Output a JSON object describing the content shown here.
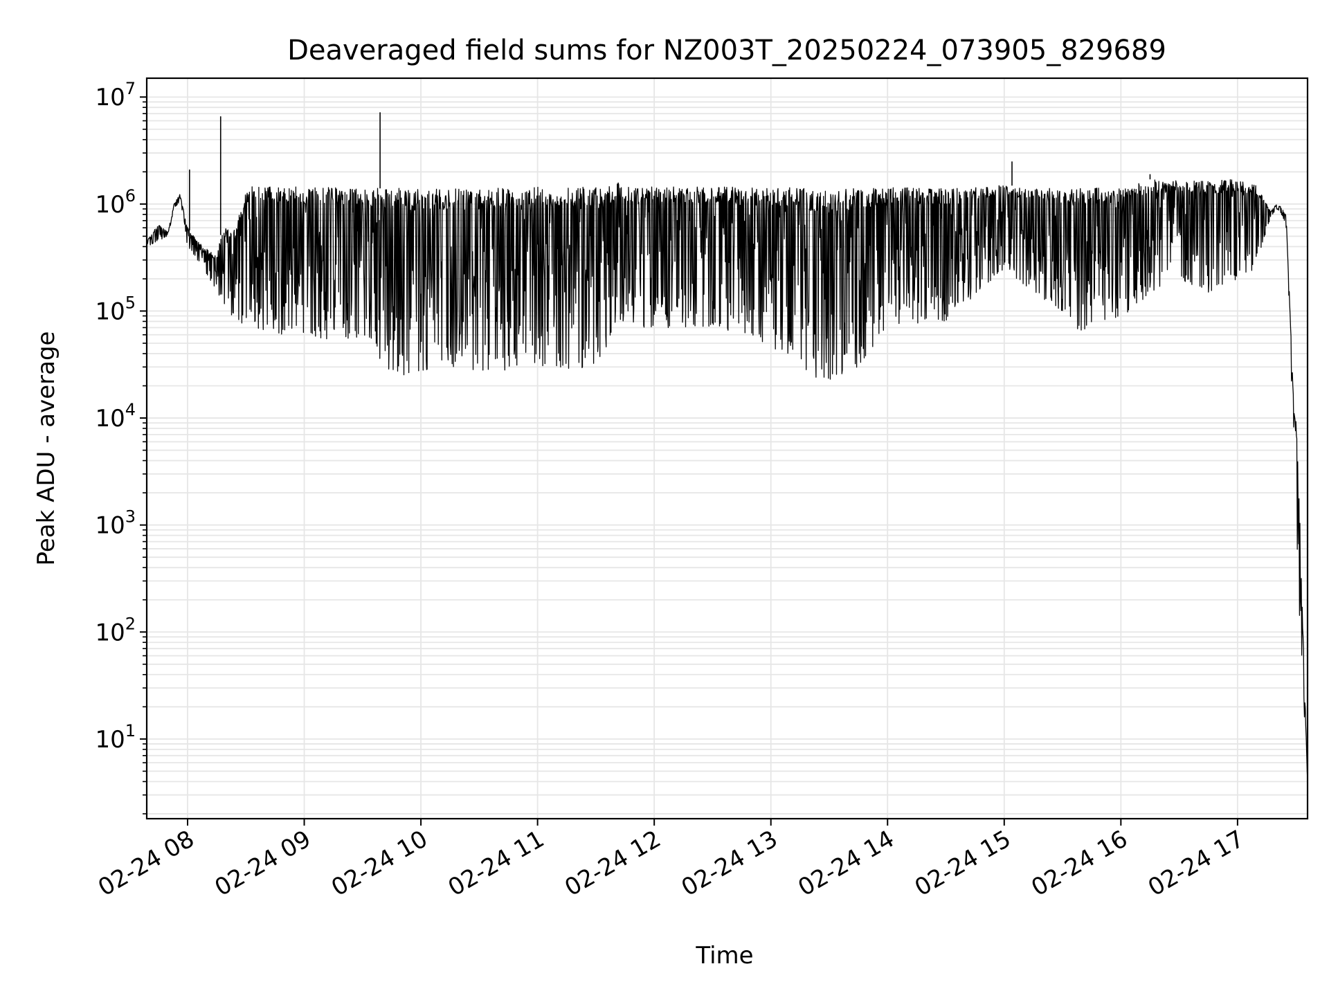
{
  "chart_data": {
    "type": "line",
    "title": "Deaveraged field sums for NZ003T_20250224_073905_829689",
    "xlabel": "Time",
    "ylabel": "Peak ADU - average",
    "x_scale": "time",
    "y_scale": "log",
    "xlim": [
      "02-24 07:39",
      "02-24 17:36"
    ],
    "ylim": [
      1.8,
      15000000
    ],
    "x_ticks": [
      "02-24 08",
      "02-24 09",
      "02-24 10",
      "02-24 11",
      "02-24 12",
      "02-24 13",
      "02-24 14",
      "02-24 15",
      "02-24 16",
      "02-24 17"
    ],
    "y_ticks": [
      {
        "base": "10",
        "exp": "1",
        "value": 10
      },
      {
        "base": "10",
        "exp": "2",
        "value": 100
      },
      {
        "base": "10",
        "exp": "3",
        "value": 1000
      },
      {
        "base": "10",
        "exp": "4",
        "value": 10000
      },
      {
        "base": "10",
        "exp": "5",
        "value": 100000
      },
      {
        "base": "10",
        "exp": "6",
        "value": 1000000
      },
      {
        "base": "10",
        "exp": "7",
        "value": 10000000
      }
    ],
    "grid": true,
    "line_color": "#000000",
    "grid_color": "#e6e6e6",
    "series": [
      {
        "x": [
          "02-24 07:39",
          "02-24 07:45",
          "02-24 07:50",
          "02-24 07:53",
          "02-24 07:56",
          "02-24 08:00",
          "02-24 08:05",
          "02-24 08:10",
          "02-24 08:15",
          "02-24 08:18",
          "02-24 08:22",
          "02-24 08:25",
          "02-24 08:30",
          "02-24 08:40",
          "02-24 08:50",
          "02-24 09:00",
          "02-24 09:10",
          "02-24 09:20",
          "02-24 09:30",
          "02-24 09:36",
          "02-24 09:40",
          "02-24 09:45",
          "02-24 09:50",
          "02-24 10:00",
          "02-24 10:30",
          "02-24 11:00",
          "02-24 11:30",
          "02-24 11:36",
          "02-24 11:40",
          "02-24 11:50",
          "02-24 12:00",
          "02-24 12:30",
          "02-24 12:50",
          "02-24 13:05",
          "02-24 13:20",
          "02-24 13:30",
          "02-24 13:45",
          "02-24 14:00",
          "02-24 14:30",
          "02-24 15:00",
          "02-24 15:15",
          "02-24 15:30",
          "02-24 15:40",
          "02-24 15:55",
          "02-24 16:00",
          "02-24 16:15",
          "02-24 16:30",
          "02-24 16:45",
          "02-24 17:00",
          "02-24 17:10",
          "02-24 17:17",
          "02-24 17:20",
          "02-24 17:22",
          "02-24 17:25",
          "02-24 17:27",
          "02-24 17:29",
          "02-24 17:30",
          "02-24 17:31",
          "02-24 17:36"
        ],
        "upper": [
          450000,
          650000,
          550000,
          1000000,
          1250000,
          600000,
          450000,
          380000,
          320000,
          650000,
          550000,
          600000,
          1450000,
          1450000,
          1450000,
          1450000,
          1450000,
          1450000,
          1400000,
          1400000,
          1400000,
          1400000,
          1400000,
          1400000,
          1400000,
          1450000,
          1450000,
          1450000,
          1600000,
          1450000,
          1450000,
          1450000,
          1450000,
          1450000,
          1400000,
          1350000,
          1400000,
          1450000,
          1400000,
          1500000,
          1450000,
          1400000,
          1450000,
          1400000,
          1500000,
          1700000,
          1650000,
          1650000,
          1700000,
          1500000,
          850000,
          1000000,
          950000,
          800000,
          100000,
          12000,
          10000,
          5000,
          4
        ],
        "lower": [
          400000,
          450000,
          500000,
          900000,
          1050000,
          400000,
          300000,
          220000,
          150000,
          120000,
          90000,
          80000,
          75000,
          65000,
          60000,
          60000,
          55000,
          55000,
          55000,
          55000,
          30000,
          28000,
          25000,
          28000,
          28000,
          28000,
          30000,
          35000,
          80000,
          70000,
          70000,
          70000,
          60000,
          40000,
          25000,
          22000,
          30000,
          70000,
          80000,
          250000,
          150000,
          100000,
          60000,
          90000,
          80000,
          150000,
          200000,
          150000,
          200000,
          250000,
          750000,
          900000,
          850000,
          600000,
          40000,
          7000,
          3000,
          300,
          4
        ]
      }
    ],
    "spikes": [
      {
        "x": "02-24 08:01",
        "y": 2100000
      },
      {
        "x": "02-24 08:17",
        "y": 6600000
      },
      {
        "x": "02-24 09:39",
        "y": 7200000
      },
      {
        "x": "02-24 15:04",
        "y": 2500000
      },
      {
        "x": "02-24 16:15",
        "y": 1900000
      }
    ]
  }
}
